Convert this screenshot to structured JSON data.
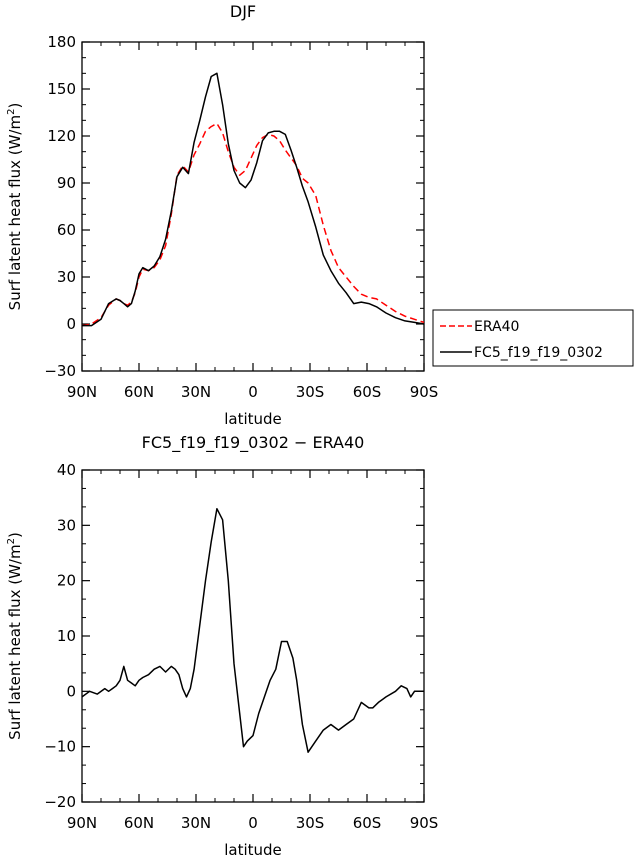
{
  "chart_data": [
    {
      "type": "line",
      "title": "DJF",
      "xlabel": "latitude",
      "ylabel": "Surf latent heat flux (W/m²)",
      "ylabel_parts": [
        "Surf latent heat flux (W/m",
        "2",
        ")"
      ],
      "x_ticks": [
        90,
        60,
        30,
        0,
        -30,
        -60,
        -90
      ],
      "x_tick_labels": [
        "90N",
        "60N",
        "30N",
        "0",
        "30S",
        "60S",
        "90S"
      ],
      "xlim": [
        90,
        -90
      ],
      "ylim": [
        -30,
        180
      ],
      "y_ticks": [
        -30,
        0,
        30,
        60,
        90,
        120,
        150,
        180
      ],
      "y_tick_labels": [
        "−30",
        "0",
        "30",
        "60",
        "90",
        "120",
        "150",
        "180"
      ],
      "legend_position": "right",
      "series": [
        {
          "name": "ERA40",
          "color": "#ff0000",
          "dash": "dashed",
          "x": [
            90,
            85,
            80,
            76,
            72,
            70,
            68,
            66,
            64,
            62,
            60,
            58,
            55,
            52,
            49,
            46,
            43,
            40,
            37,
            34,
            31,
            28,
            25,
            22,
            19,
            16,
            13,
            10,
            7,
            4,
            1,
            -2,
            -5,
            -8,
            -11,
            -14,
            -17,
            -20,
            -23,
            -26,
            -29,
            -33,
            -37,
            -41,
            -45,
            -49,
            -53,
            -57,
            -61,
            -65,
            -70,
            -75,
            -80,
            -85,
            -90
          ],
          "y": [
            -1,
            0,
            4,
            12,
            16,
            15,
            13,
            12,
            14,
            20,
            30,
            35,
            34,
            36,
            41,
            50,
            70,
            95,
            101,
            97,
            108,
            115,
            123,
            126,
            128,
            122,
            110,
            100,
            95,
            98,
            106,
            114,
            119,
            121,
            120,
            117,
            111,
            106,
            101,
            93,
            90,
            82,
            63,
            47,
            36,
            30,
            24,
            19,
            17,
            16,
            12,
            8,
            5,
            3,
            1
          ]
        },
        {
          "name": "FC5_f19_f19_0302",
          "color": "#000000",
          "dash": "solid",
          "x": [
            90,
            85,
            80,
            76,
            72,
            70,
            68,
            66,
            64,
            62,
            60,
            58,
            55,
            52,
            49,
            46,
            43,
            40,
            37,
            34,
            31,
            28,
            25,
            22,
            19,
            16,
            13,
            10,
            7,
            4,
            1,
            -2,
            -5,
            -8,
            -11,
            -14,
            -17,
            -20,
            -23,
            -26,
            -29,
            -33,
            -37,
            -41,
            -45,
            -49,
            -53,
            -57,
            -61,
            -65,
            -70,
            -75,
            -80,
            -85,
            -90
          ],
          "y": [
            -1,
            -1,
            3,
            13,
            16,
            15,
            13,
            11,
            13,
            21,
            32,
            36,
            34,
            37,
            43,
            54,
            72,
            94,
            100,
            96,
            116,
            130,
            145,
            158,
            160,
            140,
            115,
            98,
            90,
            87,
            92,
            103,
            117,
            122,
            123,
            123,
            121,
            111,
            100,
            88,
            78,
            62,
            44,
            34,
            26,
            20,
            13,
            14,
            13,
            11,
            7,
            4,
            2,
            1,
            0
          ]
        }
      ]
    },
    {
      "type": "line",
      "title": "FC5_f19_f19_0302 − ERA40",
      "xlabel": "latitude",
      "ylabel": "Surf latent heat flux (W/m²)",
      "ylabel_parts": [
        "Surf latent heat flux (W/m",
        "2",
        ")"
      ],
      "x_ticks": [
        90,
        60,
        30,
        0,
        -30,
        -60,
        -90
      ],
      "x_tick_labels": [
        "90N",
        "60N",
        "30N",
        "0",
        "30S",
        "60S",
        "90S"
      ],
      "xlim": [
        90,
        -90
      ],
      "ylim": [
        -20,
        40
      ],
      "y_ticks": [
        -20,
        -10,
        0,
        10,
        20,
        30,
        40
      ],
      "y_tick_labels": [
        "−20",
        "−10",
        "0",
        "10",
        "20",
        "30",
        "40"
      ],
      "series": [
        {
          "name": "",
          "color": "#000000",
          "dash": "solid",
          "x": [
            90,
            86,
            82,
            78,
            76,
            74,
            72,
            70,
            68,
            66,
            64,
            62,
            60,
            58,
            55,
            52,
            49,
            46,
            43,
            41,
            39,
            37,
            35,
            33,
            31,
            28,
            25,
            22,
            19,
            16,
            13,
            10,
            7,
            5,
            3,
            0,
            -3,
            -6,
            -9,
            -12,
            -15,
            -18,
            -21,
            -23,
            -26,
            -29,
            -33,
            -37,
            -41,
            -45,
            -49,
            -53,
            -57,
            -61,
            -63,
            -66,
            -70,
            -75,
            -78,
            -81,
            -83,
            -85,
            -87,
            -90
          ],
          "y": [
            -1,
            0,
            -0.5,
            0.5,
            0,
            0.5,
            1,
            2,
            4.5,
            2,
            1.5,
            1,
            2,
            2.5,
            3,
            4,
            4.5,
            3.5,
            4.5,
            4,
            3,
            0.5,
            -1,
            0.5,
            4,
            12,
            20,
            27,
            33,
            31,
            20,
            5,
            -4,
            -10,
            -9,
            -8,
            -4,
            -1,
            2,
            4,
            9,
            9,
            6,
            2,
            -6,
            -11,
            -9,
            -7,
            -6,
            -7,
            -6,
            -5,
            -2,
            -3,
            -3,
            -2,
            -1,
            0,
            1,
            0.5,
            -1,
            0,
            0,
            0
          ]
        }
      ]
    }
  ]
}
